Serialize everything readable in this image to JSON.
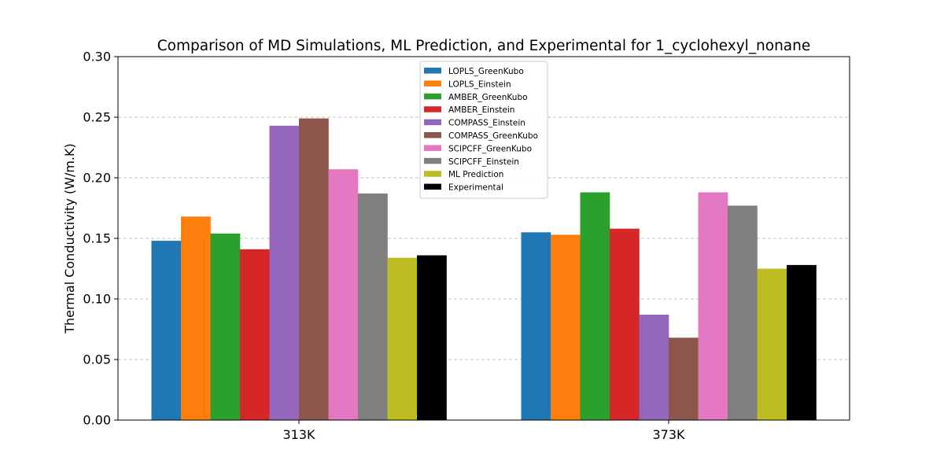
{
  "chart_data": {
    "type": "bar",
    "title": "Comparison of MD Simulations, ML Prediction, and Experimental for 1_cyclohexyl_nonane",
    "xlabel": "",
    "ylabel": "Thermal Conductivity (W/m.K)",
    "ylim": [
      0,
      0.3
    ],
    "yticks": [
      "0.00",
      "0.05",
      "0.10",
      "0.15",
      "0.20",
      "0.25",
      "0.30"
    ],
    "grid": "y-dashed",
    "legend_position": "top-center",
    "categories": [
      "313K",
      "373K"
    ],
    "series": [
      {
        "name": "LOPLS_GreenKubo",
        "color": "#1f77b4",
        "values": [
          0.148,
          0.155
        ]
      },
      {
        "name": "LOPLS_Einstein",
        "color": "#ff7f0e",
        "values": [
          0.168,
          0.153
        ]
      },
      {
        "name": "AMBER_GreenKubo",
        "color": "#2ca02c",
        "values": [
          0.154,
          0.188
        ]
      },
      {
        "name": "AMBER_Einstein",
        "color": "#d62728",
        "values": [
          0.141,
          0.158
        ]
      },
      {
        "name": "COMPASS_Einstein",
        "color": "#9467bd",
        "values": [
          0.243,
          0.087
        ]
      },
      {
        "name": "COMPASS_GreenKubo",
        "color": "#8c564b",
        "values": [
          0.249,
          0.068
        ]
      },
      {
        "name": "SCIPCFF_GreenKubo",
        "color": "#e377c2",
        "values": [
          0.207,
          0.188
        ]
      },
      {
        "name": "SCIPCFF_Einstein",
        "color": "#7f7f7f",
        "values": [
          0.187,
          0.177
        ]
      },
      {
        "name": "ML Prediction",
        "color": "#bcbd22",
        "values": [
          0.134,
          0.125
        ]
      },
      {
        "name": "Experimental",
        "color": "#000000",
        "values": [
          0.136,
          0.128
        ]
      }
    ]
  }
}
